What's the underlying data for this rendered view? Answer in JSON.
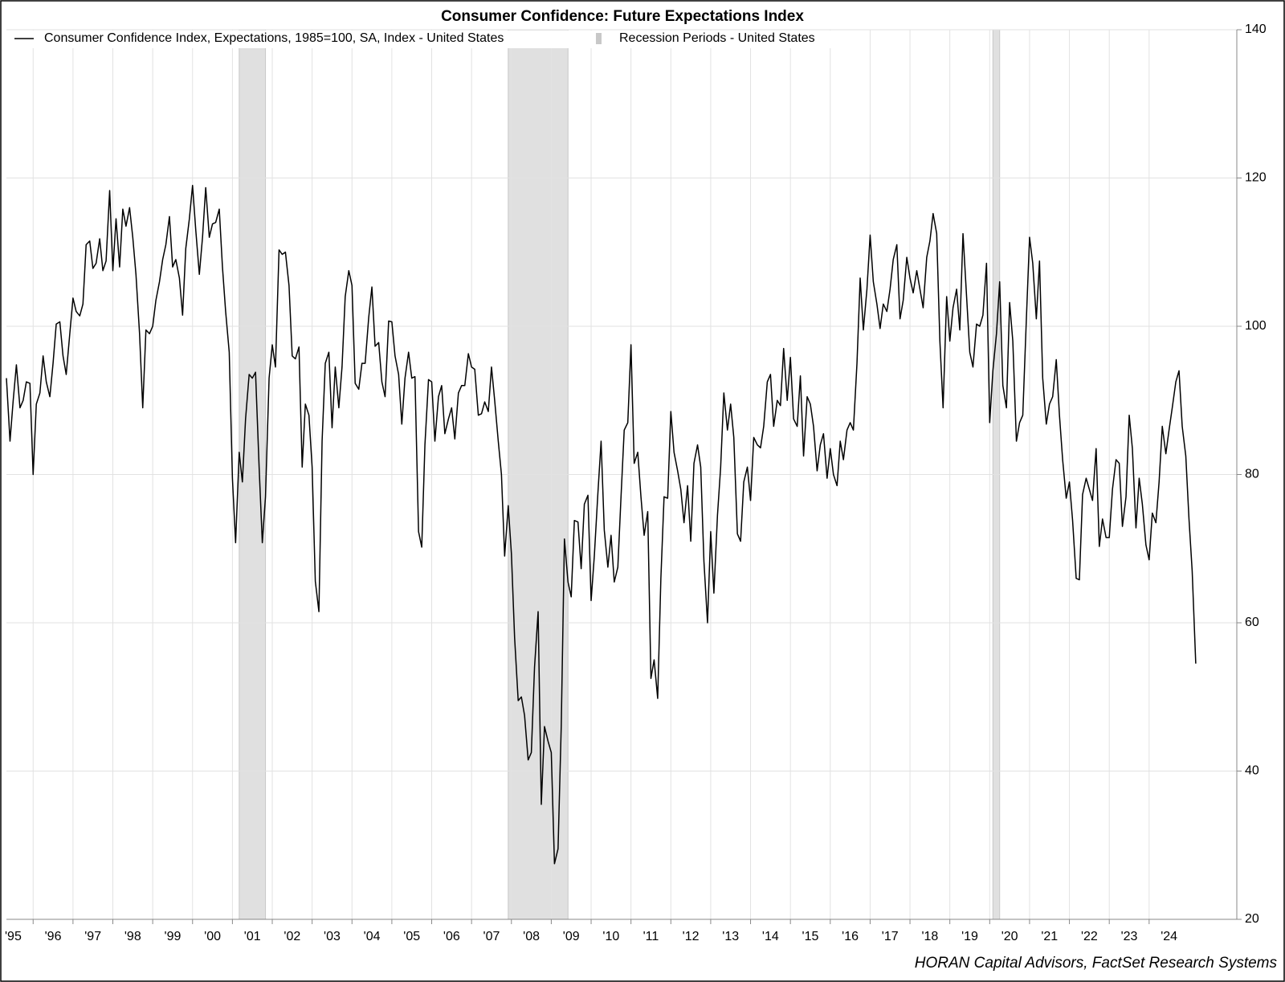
{
  "chart_data": {
    "type": "line",
    "title": "Consumer Confidence: Future Expectations Index",
    "source": "HORAN Capital Advisors, FactSet Research Systems",
    "x": [
      1995.33,
      1995.42,
      1995.5,
      1995.58,
      1995.67,
      1995.75,
      1995.83,
      1995.92,
      1996,
      1996.08,
      1996.17,
      1996.25,
      1996.33,
      1996.42,
      1996.5,
      1996.58,
      1996.67,
      1996.75,
      1996.83,
      1996.92,
      1997,
      1997.08,
      1997.17,
      1997.25,
      1997.33,
      1997.42,
      1997.5,
      1997.58,
      1997.67,
      1997.75,
      1997.83,
      1997.92,
      1998,
      1998.08,
      1998.17,
      1998.25,
      1998.33,
      1998.42,
      1998.5,
      1998.58,
      1998.67,
      1998.75,
      1998.83,
      1998.92,
      1999,
      1999.08,
      1999.17,
      1999.25,
      1999.33,
      1999.42,
      1999.5,
      1999.58,
      1999.67,
      1999.75,
      1999.83,
      1999.92,
      2000,
      2000.08,
      2000.17,
      2000.25,
      2000.33,
      2000.42,
      2000.5,
      2000.58,
      2000.67,
      2000.75,
      2000.83,
      2000.92,
      2001,
      2001.08,
      2001.17,
      2001.25,
      2001.33,
      2001.42,
      2001.5,
      2001.58,
      2001.67,
      2001.75,
      2001.83,
      2001.92,
      2002,
      2002.08,
      2002.17,
      2002.25,
      2002.33,
      2002.42,
      2002.5,
      2002.58,
      2002.67,
      2002.75,
      2002.83,
      2002.92,
      2003,
      2003.08,
      2003.17,
      2003.25,
      2003.33,
      2003.42,
      2003.5,
      2003.58,
      2003.67,
      2003.75,
      2003.83,
      2003.92,
      2004,
      2004.08,
      2004.17,
      2004.25,
      2004.33,
      2004.42,
      2004.5,
      2004.58,
      2004.67,
      2004.75,
      2004.83,
      2004.92,
      2005,
      2005.08,
      2005.17,
      2005.25,
      2005.33,
      2005.42,
      2005.5,
      2005.58,
      2005.67,
      2005.75,
      2005.83,
      2005.92,
      2006,
      2006.08,
      2006.17,
      2006.25,
      2006.33,
      2006.42,
      2006.5,
      2006.58,
      2006.67,
      2006.75,
      2006.83,
      2006.92,
      2007,
      2007.08,
      2007.17,
      2007.25,
      2007.33,
      2007.42,
      2007.5,
      2007.58,
      2007.67,
      2007.75,
      2007.83,
      2007.92,
      2008,
      2008.08,
      2008.17,
      2008.25,
      2008.33,
      2008.42,
      2008.5,
      2008.58,
      2008.67,
      2008.75,
      2008.83,
      2008.92,
      2009,
      2009.08,
      2009.17,
      2009.25,
      2009.33,
      2009.42,
      2009.5,
      2009.58,
      2009.67,
      2009.75,
      2009.83,
      2009.92,
      2010,
      2010.08,
      2010.17,
      2010.25,
      2010.33,
      2010.42,
      2010.5,
      2010.58,
      2010.67,
      2010.75,
      2010.83,
      2010.92,
      2011,
      2011.08,
      2011.17,
      2011.25,
      2011.33,
      2011.42,
      2011.5,
      2011.58,
      2011.67,
      2011.75,
      2011.83,
      2011.92,
      2012,
      2012.08,
      2012.17,
      2012.25,
      2012.33,
      2012.42,
      2012.5,
      2012.58,
      2012.67,
      2012.75,
      2012.83,
      2012.92,
      2013,
      2013.08,
      2013.17,
      2013.25,
      2013.33,
      2013.42,
      2013.5,
      2013.58,
      2013.67,
      2013.75,
      2013.83,
      2013.92,
      2014,
      2014.08,
      2014.17,
      2014.25,
      2014.33,
      2014.42,
      2014.5,
      2014.58,
      2014.67,
      2014.75,
      2014.83,
      2014.92,
      2015,
      2015.08,
      2015.17,
      2015.25,
      2015.33,
      2015.42,
      2015.5,
      2015.58,
      2015.67,
      2015.75,
      2015.83,
      2015.92,
      2016,
      2016.08,
      2016.17,
      2016.25,
      2016.33,
      2016.42,
      2016.5,
      2016.58,
      2016.67,
      2016.75,
      2016.83,
      2016.92,
      2017,
      2017.08,
      2017.17,
      2017.25,
      2017.33,
      2017.42,
      2017.5,
      2017.58,
      2017.67,
      2017.75,
      2017.83,
      2017.92,
      2018,
      2018.08,
      2018.17,
      2018.25,
      2018.33,
      2018.42,
      2018.5,
      2018.58,
      2018.67,
      2018.75,
      2018.83,
      2018.92,
      2019,
      2019.08,
      2019.17,
      2019.25,
      2019.33,
      2019.42,
      2019.5,
      2019.58,
      2019.67,
      2019.75,
      2019.83,
      2019.92,
      2020,
      2020.08,
      2020.17,
      2020.25,
      2020.33,
      2020.42,
      2020.5,
      2020.58,
      2020.67,
      2020.75,
      2020.83,
      2020.92,
      2021,
      2021.08,
      2021.17,
      2021.25,
      2021.33,
      2021.42,
      2021.5,
      2021.58,
      2021.67,
      2021.75,
      2021.83,
      2021.92,
      2022,
      2022.08,
      2022.17,
      2022.25,
      2022.33,
      2022.42,
      2022.5,
      2022.58,
      2022.67,
      2022.75,
      2022.83,
      2022.92,
      2023,
      2023.08,
      2023.17,
      2023.25,
      2023.33,
      2023.42,
      2023.5,
      2023.58,
      2023.67,
      2023.75,
      2023.83,
      2023.92,
      2024,
      2024.08,
      2024.17,
      2024.25,
      2024.33,
      2024.42,
      2024.5,
      2024.58,
      2024.67,
      2024.75,
      2024.83,
      2024.92,
      2025,
      2025.08,
      2025.17
    ],
    "series": [
      {
        "name": "Consumer Confidence Index, Expectations, 1985=100, SA, Index - United States",
        "color": "#000000",
        "values": [
          93,
          84.5,
          90,
          94.8,
          89,
          90,
          92.5,
          92.3,
          80,
          89.5,
          91,
          96,
          92.5,
          90.5,
          95,
          100.3,
          100.6,
          96,
          93.5,
          99,
          103.8,
          102,
          101.4,
          103,
          111,
          111.5,
          107.8,
          108.5,
          111.8,
          107.5,
          108.8,
          118.3,
          107.5,
          114.5,
          108,
          115.8,
          113.5,
          116,
          112,
          107,
          99,
          89,
          99.5,
          99,
          100,
          103.5,
          106,
          109,
          111,
          114.8,
          108,
          109,
          106.5,
          101.5,
          110.5,
          114.5,
          119,
          113,
          107,
          112,
          118.7,
          112,
          113.8,
          114,
          115.8,
          108,
          102,
          96.5,
          79.5,
          70.8,
          83,
          79,
          87.5,
          93.5,
          93,
          93.8,
          81,
          70.8,
          77,
          93,
          97.5,
          94.5,
          110.3,
          109.7,
          110,
          105.5,
          96,
          95.6,
          97.2,
          81,
          89.5,
          88,
          81,
          65.6,
          61.5,
          84.5,
          95,
          96.5,
          86.3,
          94.5,
          89,
          94.5,
          104,
          107.5,
          105.5,
          92.3,
          91.5,
          95,
          95,
          101.2,
          105.3,
          97.3,
          97.8,
          92.5,
          90.5,
          100.7,
          100.6,
          96,
          93.5,
          86.8,
          93,
          96.5,
          93,
          93.2,
          72.3,
          70.2,
          84,
          92.8,
          92.5,
          84.5,
          90.5,
          92,
          85.5,
          87.5,
          89,
          84.8,
          91,
          92,
          92,
          96.3,
          94.5,
          94.2,
          88,
          88.2,
          89.8,
          88.5,
          94.5,
          90,
          84.5,
          80,
          69,
          75.8,
          69.3,
          58,
          49.5,
          50,
          47.5,
          41.5,
          42.5,
          54,
          61.5,
          35.5,
          46,
          44,
          42.5,
          27.5,
          29.5,
          46,
          71.3,
          65.5,
          63.5,
          73.8,
          73.6,
          67.3,
          76,
          77.2,
          63,
          69,
          77.5,
          84.5,
          72.5,
          67.5,
          71.8,
          65.5,
          67.5,
          77,
          86,
          87,
          97.5,
          81.5,
          83,
          77,
          71.8,
          75,
          52.5,
          55,
          49.8,
          66,
          77,
          76.8,
          88.5,
          83,
          80.5,
          78,
          73.5,
          78.5,
          71,
          81.5,
          84,
          81,
          68.3,
          60,
          72.3,
          64,
          74.5,
          81,
          91,
          86,
          89.5,
          85,
          72,
          71,
          79,
          81,
          76.5,
          85,
          84,
          83.6,
          86.5,
          92.5,
          93.5,
          86.5,
          90,
          89.3,
          97,
          90,
          95.8,
          87.5,
          86.5,
          93.3,
          82.5,
          90.5,
          89.5,
          86.5,
          80.5,
          84,
          85.5,
          79.5,
          83.5,
          80,
          78.5,
          84.5,
          82,
          86,
          87,
          86,
          95,
          106.5,
          99.5,
          105,
          112.3,
          106,
          103,
          99.7,
          103,
          102,
          105,
          109,
          111,
          101,
          103.5,
          109.3,
          106.5,
          104.5,
          107.5,
          105,
          102.5,
          109.3,
          111.5,
          115.2,
          112.5,
          98,
          89,
          104,
          98,
          102.5,
          105,
          99.5,
          112.5,
          104,
          96.5,
          94.5,
          100.3,
          100,
          101.5,
          108.5,
          87,
          94,
          99,
          106,
          92,
          89,
          103.2,
          98,
          84.5,
          87,
          88,
          101,
          112,
          108.5,
          101,
          108.8,
          93,
          86.8,
          89.5,
          90.5,
          95.5,
          88,
          82,
          76.8,
          79,
          73.8,
          66,
          65.8,
          77.3,
          79.5,
          78,
          76.5,
          83.5,
          70.3,
          74,
          71.5,
          71.5,
          78,
          82,
          81.5,
          73,
          77,
          88,
          83.5,
          72.8,
          79.5,
          76,
          70.5,
          68.5,
          74.8,
          73.5,
          79,
          86.5,
          82.8,
          86,
          89,
          92.5,
          94,
          86.5,
          82.5,
          74,
          67,
          54.5
        ]
      }
    ],
    "recessions": {
      "name": "Recession Periods - United States",
      "color": "#e0e0e0",
      "periods": [
        [
          2001.17,
          2001.83
        ],
        [
          2007.92,
          2009.42
        ],
        [
          2020.08,
          2020.25
        ]
      ]
    },
    "xlim": [
      1995.33,
      2026.2
    ],
    "xticks": [
      {
        "value": 1995,
        "label": "'95"
      },
      {
        "value": 1996,
        "label": "'96"
      },
      {
        "value": 1997,
        "label": "'97"
      },
      {
        "value": 1998,
        "label": "'98"
      },
      {
        "value": 1999,
        "label": "'99"
      },
      {
        "value": 2000,
        "label": "'00"
      },
      {
        "value": 2001,
        "label": "'01"
      },
      {
        "value": 2002,
        "label": "'02"
      },
      {
        "value": 2003,
        "label": "'03"
      },
      {
        "value": 2004,
        "label": "'04"
      },
      {
        "value": 2005,
        "label": "'05"
      },
      {
        "value": 2006,
        "label": "'06"
      },
      {
        "value": 2007,
        "label": "'07"
      },
      {
        "value": 2008,
        "label": "'08"
      },
      {
        "value": 2009,
        "label": "'09"
      },
      {
        "value": 2010,
        "label": "'10"
      },
      {
        "value": 2011,
        "label": "'11"
      },
      {
        "value": 2012,
        "label": "'12"
      },
      {
        "value": 2013,
        "label": "'13"
      },
      {
        "value": 2014,
        "label": "'14"
      },
      {
        "value": 2015,
        "label": "'15"
      },
      {
        "value": 2016,
        "label": "'16"
      },
      {
        "value": 2017,
        "label": "'17"
      },
      {
        "value": 2018,
        "label": "'18"
      },
      {
        "value": 2019,
        "label": "'19"
      },
      {
        "value": 2020,
        "label": "'20"
      },
      {
        "value": 2021,
        "label": "'21"
      },
      {
        "value": 2022,
        "label": "'22"
      },
      {
        "value": 2023,
        "label": "'23"
      },
      {
        "value": 2024,
        "label": "'24"
      }
    ],
    "ylim": [
      20,
      140
    ],
    "yticks": [
      20,
      40,
      60,
      80,
      100,
      120,
      140
    ],
    "grid": true
  }
}
